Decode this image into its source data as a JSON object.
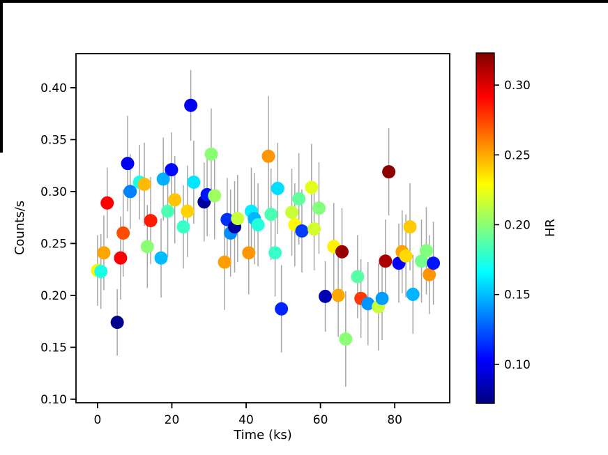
{
  "window": {
    "background": "#ffffff",
    "border_color": "#000000"
  },
  "chart_data": {
    "type": "scatter",
    "title": "",
    "xlabel": "Time (ks)",
    "ylabel": "Counts/s",
    "colorbar_label": "HR",
    "xlim": [
      -5.8,
      94.8
    ],
    "ylim": [
      0.0966,
      0.4328
    ],
    "x_ticks": [
      0,
      20,
      40,
      60,
      80
    ],
    "y_ticks": [
      0.1,
      0.15,
      0.2,
      0.25,
      0.3,
      0.35,
      0.4
    ],
    "grid": false,
    "marker_radius_px": 9.5,
    "errorbar_color": "#a6a6a6",
    "frame_color": "#000000",
    "colorbar": {
      "colormap": "jet",
      "vmin": 0.072,
      "vmax": 0.323,
      "ticks": [
        0.1,
        0.15,
        0.2,
        0.25,
        0.3
      ],
      "jet_anchor_colors": [
        "#000080",
        "#0000ff",
        "#00ffff",
        "#ffff00",
        "#ff0000",
        "#800000"
      ]
    },
    "points": [
      {
        "t": 0.0,
        "counts": 0.224,
        "err": 0.034,
        "hr": 0.231
      },
      {
        "t": 0.9,
        "counts": 0.223,
        "err": 0.036,
        "hr": 0.172
      },
      {
        "t": 1.7,
        "counts": 0.241,
        "err": 0.036,
        "hr": 0.251
      },
      {
        "t": 2.6,
        "counts": 0.289,
        "err": 0.034,
        "hr": 0.292
      },
      {
        "t": 5.3,
        "counts": 0.174,
        "err": 0.032,
        "hr": 0.075
      },
      {
        "t": 6.2,
        "counts": 0.236,
        "err": 0.04,
        "hr": 0.292
      },
      {
        "t": 6.9,
        "counts": 0.26,
        "err": 0.042,
        "hr": 0.273
      },
      {
        "t": 8.1,
        "counts": 0.327,
        "err": 0.046,
        "hr": 0.1
      },
      {
        "t": 8.8,
        "counts": 0.3,
        "err": 0.036,
        "hr": 0.135
      },
      {
        "t": 11.3,
        "counts": 0.309,
        "err": 0.036,
        "hr": 0.172
      },
      {
        "t": 12.6,
        "counts": 0.307,
        "err": 0.04,
        "hr": 0.246
      },
      {
        "t": 13.4,
        "counts": 0.247,
        "err": 0.04,
        "hr": 0.2
      },
      {
        "t": 14.3,
        "counts": 0.272,
        "err": 0.042,
        "hr": 0.285
      },
      {
        "t": 17.1,
        "counts": 0.236,
        "err": 0.038,
        "hr": 0.15
      },
      {
        "t": 17.7,
        "counts": 0.312,
        "err": 0.04,
        "hr": 0.147
      },
      {
        "t": 18.9,
        "counts": 0.281,
        "err": 0.044,
        "hr": 0.185
      },
      {
        "t": 19.9,
        "counts": 0.321,
        "err": 0.036,
        "hr": 0.105
      },
      {
        "t": 20.8,
        "counts": 0.292,
        "err": 0.042,
        "hr": 0.243
      },
      {
        "t": 23.1,
        "counts": 0.266,
        "err": 0.04,
        "hr": 0.18
      },
      {
        "t": 24.2,
        "counts": 0.281,
        "err": 0.044,
        "hr": 0.24
      },
      {
        "t": 25.1,
        "counts": 0.383,
        "err": 0.034,
        "hr": 0.1
      },
      {
        "t": 25.9,
        "counts": 0.309,
        "err": 0.04,
        "hr": 0.16
      },
      {
        "t": 28.7,
        "counts": 0.29,
        "err": 0.038,
        "hr": 0.078
      },
      {
        "t": 29.5,
        "counts": 0.297,
        "err": 0.04,
        "hr": 0.108
      },
      {
        "t": 30.6,
        "counts": 0.336,
        "err": 0.044,
        "hr": 0.2
      },
      {
        "t": 31.5,
        "counts": 0.296,
        "err": 0.042,
        "hr": 0.205
      },
      {
        "t": 34.2,
        "counts": 0.232,
        "err": 0.046,
        "hr": 0.253
      },
      {
        "t": 34.9,
        "counts": 0.273,
        "err": 0.04,
        "hr": 0.115
      },
      {
        "t": 35.8,
        "counts": 0.26,
        "err": 0.042,
        "hr": 0.138
      },
      {
        "t": 36.9,
        "counts": 0.266,
        "err": 0.044,
        "hr": 0.08
      },
      {
        "t": 37.7,
        "counts": 0.274,
        "err": 0.042,
        "hr": 0.215
      },
      {
        "t": 40.7,
        "counts": 0.241,
        "err": 0.04,
        "hr": 0.255
      },
      {
        "t": 41.4,
        "counts": 0.281,
        "err": 0.042,
        "hr": 0.162
      },
      {
        "t": 42.2,
        "counts": 0.274,
        "err": 0.044,
        "hr": 0.148
      },
      {
        "t": 43.2,
        "counts": 0.268,
        "err": 0.04,
        "hr": 0.175
      },
      {
        "t": 46.0,
        "counts": 0.334,
        "err": 0.058,
        "hr": 0.255
      },
      {
        "t": 46.7,
        "counts": 0.278,
        "err": 0.044,
        "hr": 0.185
      },
      {
        "t": 47.8,
        "counts": 0.241,
        "err": 0.042,
        "hr": 0.18
      },
      {
        "t": 48.5,
        "counts": 0.303,
        "err": 0.044,
        "hr": 0.158
      },
      {
        "t": 49.5,
        "counts": 0.187,
        "err": 0.042,
        "hr": 0.112
      },
      {
        "t": 52.3,
        "counts": 0.28,
        "err": 0.042,
        "hr": 0.215
      },
      {
        "t": 53.1,
        "counts": 0.268,
        "err": 0.04,
        "hr": 0.23
      },
      {
        "t": 54.2,
        "counts": 0.293,
        "err": 0.044,
        "hr": 0.19
      },
      {
        "t": 55.0,
        "counts": 0.262,
        "err": 0.04,
        "hr": 0.118
      },
      {
        "t": 57.6,
        "counts": 0.304,
        "err": 0.042,
        "hr": 0.222
      },
      {
        "t": 58.3,
        "counts": 0.264,
        "err": 0.04,
        "hr": 0.218
      },
      {
        "t": 59.6,
        "counts": 0.284,
        "err": 0.044,
        "hr": 0.198
      },
      {
        "t": 61.3,
        "counts": 0.199,
        "err": 0.034,
        "hr": 0.085
      },
      {
        "t": 63.6,
        "counts": 0.247,
        "err": 0.042,
        "hr": 0.232
      },
      {
        "t": 64.8,
        "counts": 0.2,
        "err": 0.04,
        "hr": 0.25
      },
      {
        "t": 65.8,
        "counts": 0.242,
        "err": 0.042,
        "hr": 0.317
      },
      {
        "t": 66.8,
        "counts": 0.158,
        "err": 0.046,
        "hr": 0.2
      },
      {
        "t": 70.0,
        "counts": 0.218,
        "err": 0.04,
        "hr": 0.188
      },
      {
        "t": 70.9,
        "counts": 0.197,
        "err": 0.038,
        "hr": 0.278
      },
      {
        "t": 72.8,
        "counts": 0.192,
        "err": 0.04,
        "hr": 0.14
      },
      {
        "t": 75.6,
        "counts": 0.189,
        "err": 0.042,
        "hr": 0.215
      },
      {
        "t": 76.6,
        "counts": 0.197,
        "err": 0.04,
        "hr": 0.142
      },
      {
        "t": 77.5,
        "counts": 0.233,
        "err": 0.04,
        "hr": 0.312
      },
      {
        "t": 78.4,
        "counts": 0.319,
        "err": 0.042,
        "hr": 0.32
      },
      {
        "t": 81.1,
        "counts": 0.231,
        "err": 0.038,
        "hr": 0.103
      },
      {
        "t": 82.0,
        "counts": 0.242,
        "err": 0.04,
        "hr": 0.252
      },
      {
        "t": 83.0,
        "counts": 0.238,
        "err": 0.04,
        "hr": 0.238
      },
      {
        "t": 84.1,
        "counts": 0.266,
        "err": 0.042,
        "hr": 0.242
      },
      {
        "t": 84.9,
        "counts": 0.201,
        "err": 0.038,
        "hr": 0.148
      },
      {
        "t": 87.2,
        "counts": 0.233,
        "err": 0.04,
        "hr": 0.195
      },
      {
        "t": 88.5,
        "counts": 0.243,
        "err": 0.042,
        "hr": 0.198
      },
      {
        "t": 89.3,
        "counts": 0.22,
        "err": 0.038,
        "hr": 0.255
      },
      {
        "t": 90.4,
        "counts": 0.231,
        "err": 0.04,
        "hr": 0.108
      }
    ]
  }
}
